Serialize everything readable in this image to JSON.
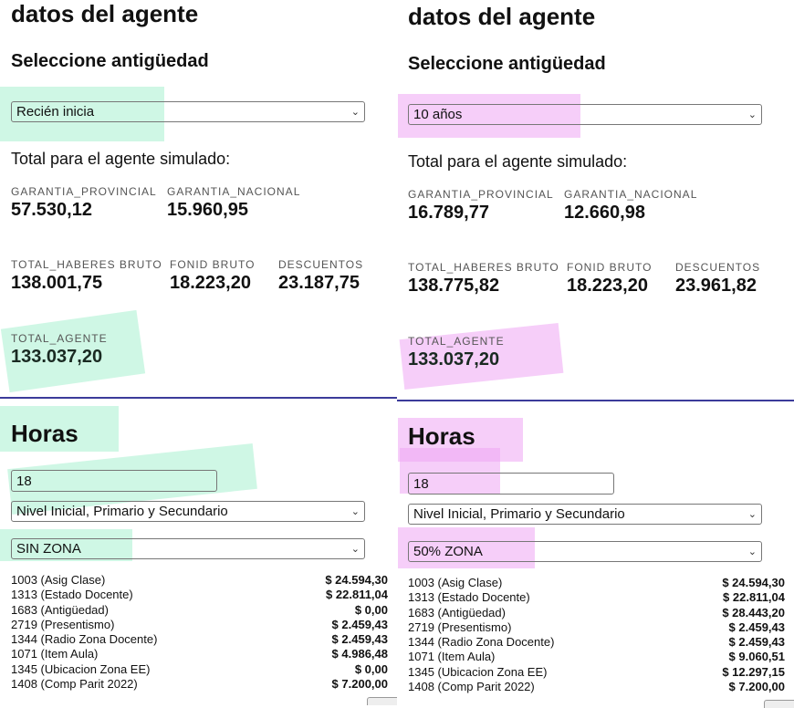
{
  "highlight_colors": {
    "left": "#a8f0cf",
    "right": "#eea6f4",
    "divider": "#3b3b9a"
  },
  "panels": [
    {
      "title": "datos del agente",
      "antiguedad_heading": "Seleccione antigüedad",
      "antiguedad_selected": "Recién inicia",
      "total_heading": "Total para el agente simulado:",
      "garantia_provincial": {
        "label": "GARANTIA_PROVINCIAL",
        "value": "57.530,12"
      },
      "garantia_nacional": {
        "label": "GARANTIA_NACIONAL",
        "value": "15.960,95"
      },
      "total_haberes": {
        "label": "TOTAL_HABERES BRUTO",
        "value": "138.001,75"
      },
      "fonid": {
        "label": "FONID BRUTO",
        "value": "18.223,20"
      },
      "descuentos": {
        "label": "DESCUENTOS",
        "value": "23.187,75"
      },
      "total_agente": {
        "label": "TOTAL_AGENTE",
        "value": "133.037,20"
      },
      "horas_heading": "Horas",
      "horas_value": "18",
      "nivel_selected": "Nivel Inicial, Primario y Secundario",
      "zona_selected": "SIN ZONA",
      "items": [
        {
          "concept": "1003 (Asig Clase)",
          "amount": "$ 24.594,30"
        },
        {
          "concept": "1313 (Estado Docente)",
          "amount": "$ 22.811,04"
        },
        {
          "concept": "1683 (Antigüedad)",
          "amount": "$ 0,00"
        },
        {
          "concept": "2719 (Presentismo)",
          "amount": "$ 2.459,43"
        },
        {
          "concept": "1344 (Radio Zona Docente)",
          "amount": "$ 2.459,43"
        },
        {
          "concept": "1071 (Item Aula)",
          "amount": "$ 4.986,48"
        },
        {
          "concept": "1345 (Ubicacion Zona EE)",
          "amount": "$ 0,00"
        },
        {
          "concept": "1408 (Comp Parit 2022)",
          "amount": "$ 7.200,00"
        }
      ]
    },
    {
      "title": "datos del agente",
      "antiguedad_heading": "Seleccione antigüedad",
      "antiguedad_selected": "10 años",
      "total_heading": "Total para el agente simulado:",
      "garantia_provincial": {
        "label": "GARANTIA_PROVINCIAL",
        "value": "16.789,77"
      },
      "garantia_nacional": {
        "label": "GARANTIA_NACIONAL",
        "value": "12.660,98"
      },
      "total_haberes": {
        "label": "TOTAL_HABERES BRUTO",
        "value": "138.775,82"
      },
      "fonid": {
        "label": "FONID BRUTO",
        "value": "18.223,20"
      },
      "descuentos": {
        "label": "DESCUENTOS",
        "value": "23.961,82"
      },
      "total_agente": {
        "label": "TOTAL_AGENTE",
        "value": "133.037,20"
      },
      "horas_heading": "Horas",
      "horas_value": "18",
      "nivel_selected": "Nivel Inicial, Primario y Secundario",
      "zona_selected": "50% ZONA",
      "items": [
        {
          "concept": "1003 (Asig Clase)",
          "amount": "$ 24.594,30"
        },
        {
          "concept": "1313 (Estado Docente)",
          "amount": "$ 22.811,04"
        },
        {
          "concept": "1683 (Antigüedad)",
          "amount": "$ 28.443,20"
        },
        {
          "concept": "2719 (Presentismo)",
          "amount": "$ 2.459,43"
        },
        {
          "concept": "1344 (Radio Zona Docente)",
          "amount": "$ 2.459,43"
        },
        {
          "concept": "1071 (Item Aula)",
          "amount": "$ 9.060,51"
        },
        {
          "concept": "1345 (Ubicacion Zona EE)",
          "amount": "$ 12.297,15"
        },
        {
          "concept": "1408 (Comp Parit 2022)",
          "amount": "$ 7.200,00"
        }
      ]
    }
  ]
}
